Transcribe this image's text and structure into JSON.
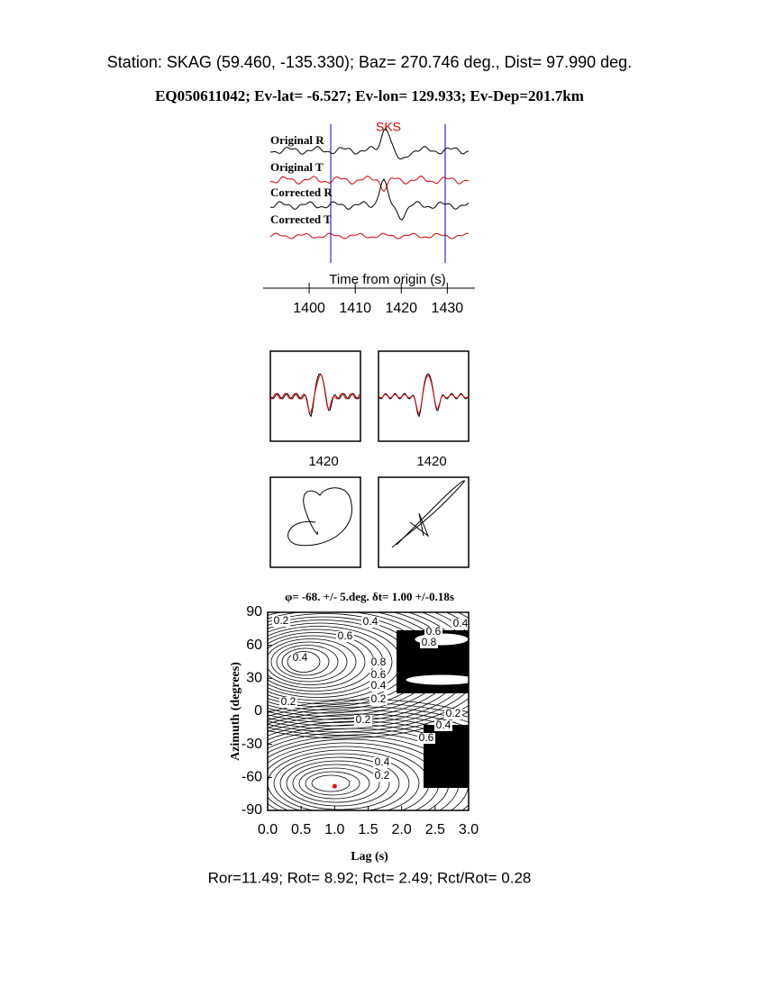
{
  "header": {
    "station": "Station: SKAG (59.460, -135.330); Baz=  270.746 deg., Dist=   97.990 deg.",
    "event": "EQ050611042; Ev-lat=  -6.527; Ev-lon= 129.933; Ev-Dep=201.7km"
  },
  "traces": {
    "phase": "SKS",
    "labels": [
      "Original R",
      "Original T",
      "Corrected R",
      "Corrected T"
    ],
    "xlabel": "Time from origin (s)",
    "xlim": [
      1390,
      1436
    ],
    "xticks": [
      1400,
      1410,
      1420,
      1430
    ]
  },
  "particle_motion": {
    "xticks": [
      "1420",
      "1420"
    ]
  },
  "grid_search": {
    "title": "φ= -68. +/- 5.deg. δt= 1.00 +/-0.18s",
    "ylabel": "Azimuth (degrees)",
    "xlabel": "Lag (s)",
    "xlim": [
      0,
      3
    ],
    "ylim": [
      -90,
      90
    ],
    "xticks": [
      {
        "value": 0,
        "label": "0.0"
      },
      {
        "value": 0.5,
        "label": "0.5"
      },
      {
        "value": 1,
        "label": "1.0"
      },
      {
        "value": 1.5,
        "label": "1.5"
      },
      {
        "value": 2,
        "label": "2.0"
      },
      {
        "value": 2.5,
        "label": "2.5"
      },
      {
        "value": 3,
        "label": "3.0"
      }
    ],
    "yticks": [
      -90,
      -60,
      -30,
      0,
      30,
      60,
      90
    ],
    "best": {
      "lag": 1.0,
      "azimuth": -68
    },
    "contour_labels": [
      "0.2",
      "0.4",
      "0.6",
      "0.4",
      "0.6",
      "0.8",
      "0.4",
      "0.8",
      "0.6",
      "0.4",
      "0.2",
      "0.2",
      "0.2",
      "0.2",
      "0.4",
      "0.6",
      "0.4",
      "0.2"
    ]
  },
  "footer": "Ror=11.49; Rot= 8.92; Rct= 2.49; Rct/Rot= 0.28"
}
